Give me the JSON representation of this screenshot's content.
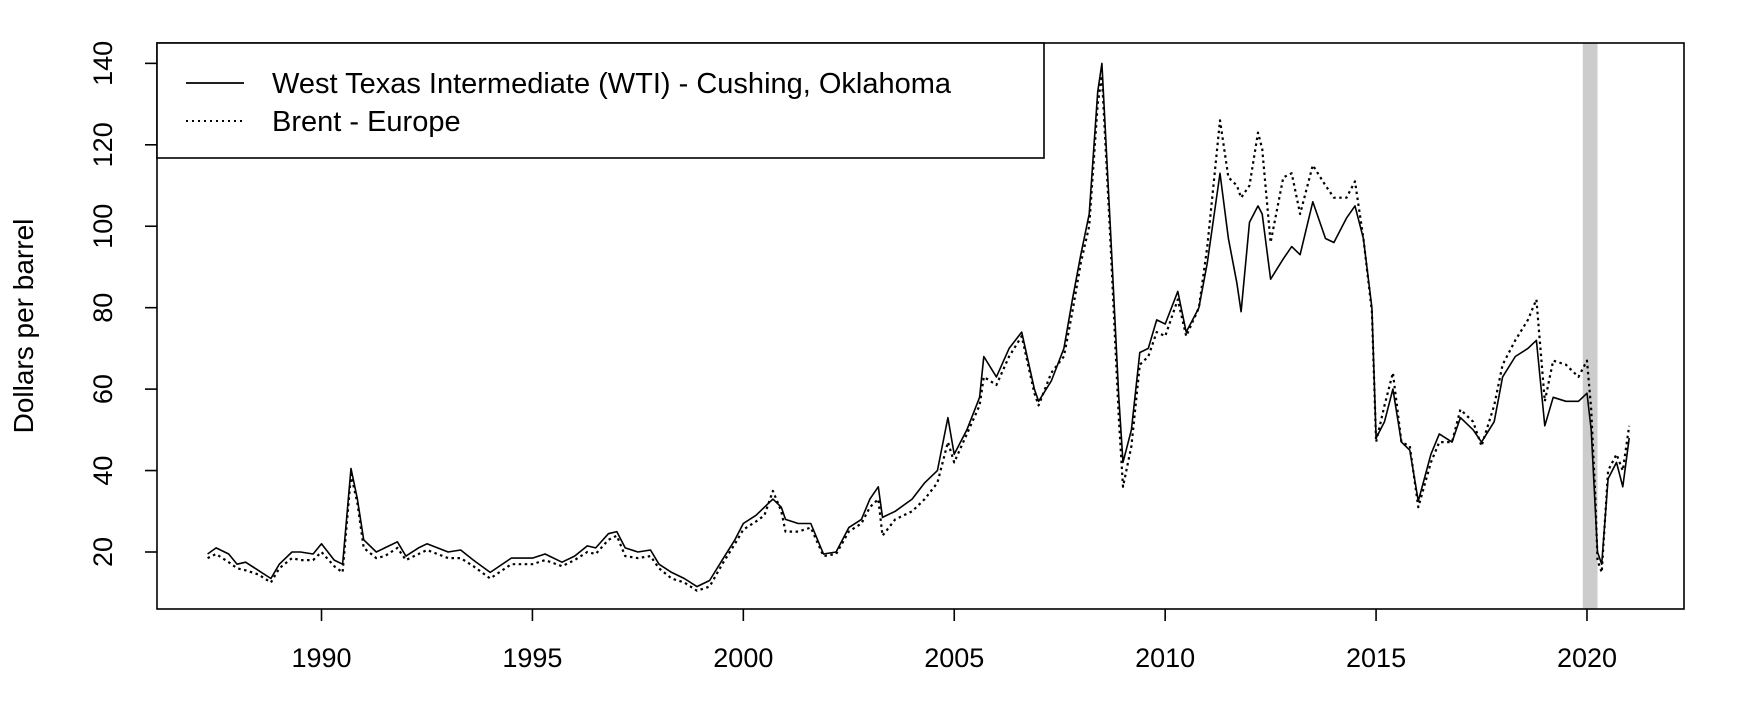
{
  "chart_data": {
    "type": "line",
    "title": "",
    "xlabel": "",
    "ylabel": "Dollars per barrel",
    "xlim": [
      1986.1,
      2022.3
    ],
    "ylim": [
      6,
      145
    ],
    "x_ticks": [
      1990,
      1995,
      2000,
      2005,
      2010,
      2015,
      2020
    ],
    "y_ticks": [
      20,
      40,
      60,
      80,
      100,
      120,
      140
    ],
    "grid": false,
    "legend": {
      "position": "top-left"
    },
    "shaded_region": {
      "x": [
        2019.9,
        2020.25
      ],
      "color": "#cccccc"
    },
    "series": [
      {
        "name": "West Texas Intermediate (WTI) - Cushing, Oklahoma",
        "style": "solid",
        "color": "#000000",
        "points": [
          [
            1987.3,
            19.5
          ],
          [
            1987.5,
            21
          ],
          [
            1987.8,
            19.5
          ],
          [
            1988.0,
            17
          ],
          [
            1988.2,
            17.5
          ],
          [
            1988.5,
            15.5
          ],
          [
            1988.8,
            13.5
          ],
          [
            1989.0,
            17
          ],
          [
            1989.3,
            20
          ],
          [
            1989.5,
            20
          ],
          [
            1989.8,
            19.5
          ],
          [
            1990.0,
            22
          ],
          [
            1990.3,
            18
          ],
          [
            1990.5,
            17
          ],
          [
            1990.7,
            40.5
          ],
          [
            1990.85,
            33
          ],
          [
            1991.0,
            23
          ],
          [
            1991.3,
            20
          ],
          [
            1991.5,
            21
          ],
          [
            1991.8,
            22.5
          ],
          [
            1992.0,
            19
          ],
          [
            1992.3,
            21
          ],
          [
            1992.5,
            22
          ],
          [
            1993.0,
            20
          ],
          [
            1993.3,
            20.5
          ],
          [
            1993.6,
            18
          ],
          [
            1994.0,
            15
          ],
          [
            1994.5,
            18.5
          ],
          [
            1995.0,
            18.5
          ],
          [
            1995.3,
            19.5
          ],
          [
            1995.7,
            17.5
          ],
          [
            1996.0,
            19
          ],
          [
            1996.3,
            21.5
          ],
          [
            1996.5,
            21
          ],
          [
            1996.8,
            24.5
          ],
          [
            1997.0,
            25
          ],
          [
            1997.2,
            21
          ],
          [
            1997.5,
            20
          ],
          [
            1997.8,
            20.5
          ],
          [
            1998.0,
            17
          ],
          [
            1998.3,
            15
          ],
          [
            1998.6,
            13.5
          ],
          [
            1998.9,
            11.5
          ],
          [
            1999.2,
            13
          ],
          [
            1999.5,
            18
          ],
          [
            1999.8,
            23
          ],
          [
            2000.0,
            27
          ],
          [
            2000.3,
            29
          ],
          [
            2000.5,
            31
          ],
          [
            2000.7,
            33
          ],
          [
            2000.9,
            31
          ],
          [
            2001.0,
            28
          ],
          [
            2001.3,
            27
          ],
          [
            2001.6,
            27
          ],
          [
            2001.9,
            19.5
          ],
          [
            2002.2,
            20
          ],
          [
            2002.5,
            26
          ],
          [
            2002.8,
            28
          ],
          [
            2003.0,
            33
          ],
          [
            2003.2,
            36
          ],
          [
            2003.3,
            28.5
          ],
          [
            2003.6,
            30
          ],
          [
            2004.0,
            33
          ],
          [
            2004.3,
            37
          ],
          [
            2004.6,
            40
          ],
          [
            2004.85,
            53
          ],
          [
            2005.0,
            44
          ],
          [
            2005.3,
            50
          ],
          [
            2005.6,
            58
          ],
          [
            2005.7,
            68
          ],
          [
            2006.0,
            63
          ],
          [
            2006.3,
            70
          ],
          [
            2006.6,
            74
          ],
          [
            2006.9,
            60
          ],
          [
            2007.0,
            57
          ],
          [
            2007.3,
            62
          ],
          [
            2007.6,
            70
          ],
          [
            2007.8,
            82
          ],
          [
            2008.0,
            93
          ],
          [
            2008.2,
            103
          ],
          [
            2008.4,
            133
          ],
          [
            2008.5,
            140
          ],
          [
            2008.7,
            100
          ],
          [
            2008.9,
            58
          ],
          [
            2009.0,
            42
          ],
          [
            2009.2,
            50
          ],
          [
            2009.4,
            69
          ],
          [
            2009.6,
            70
          ],
          [
            2009.8,
            77
          ],
          [
            2010.0,
            76
          ],
          [
            2010.3,
            84
          ],
          [
            2010.5,
            74
          ],
          [
            2010.8,
            80
          ],
          [
            2011.0,
            91
          ],
          [
            2011.3,
            113
          ],
          [
            2011.5,
            97
          ],
          [
            2011.7,
            86
          ],
          [
            2011.8,
            79
          ],
          [
            2012.0,
            101
          ],
          [
            2012.2,
            105
          ],
          [
            2012.3,
            103
          ],
          [
            2012.5,
            87
          ],
          [
            2012.8,
            92
          ],
          [
            2013.0,
            95
          ],
          [
            2013.2,
            93
          ],
          [
            2013.5,
            106
          ],
          [
            2013.8,
            97
          ],
          [
            2014.0,
            96
          ],
          [
            2014.3,
            102
          ],
          [
            2014.5,
            105
          ],
          [
            2014.7,
            97
          ],
          [
            2014.9,
            80
          ],
          [
            2015.0,
            48
          ],
          [
            2015.2,
            52
          ],
          [
            2015.4,
            60
          ],
          [
            2015.6,
            47
          ],
          [
            2015.8,
            45
          ],
          [
            2016.0,
            32.5
          ],
          [
            2016.3,
            44
          ],
          [
            2016.5,
            49
          ],
          [
            2016.8,
            47
          ],
          [
            2017.0,
            53
          ],
          [
            2017.3,
            50
          ],
          [
            2017.5,
            47
          ],
          [
            2017.8,
            52
          ],
          [
            2018.0,
            63
          ],
          [
            2018.3,
            68
          ],
          [
            2018.6,
            70
          ],
          [
            2018.8,
            72
          ],
          [
            2019.0,
            51
          ],
          [
            2019.2,
            58
          ],
          [
            2019.5,
            57
          ],
          [
            2019.8,
            57
          ],
          [
            2020.0,
            59
          ],
          [
            2020.1,
            50
          ],
          [
            2020.2,
            30
          ],
          [
            2020.25,
            20
          ],
          [
            2020.35,
            17
          ],
          [
            2020.5,
            38
          ],
          [
            2020.7,
            42
          ],
          [
            2020.85,
            36
          ],
          [
            2021.0,
            48
          ]
        ]
      },
      {
        "name": "Brent - Europe",
        "style": "dotted",
        "color": "#000000",
        "points": [
          [
            1987.3,
            18.5
          ],
          [
            1987.5,
            19.5
          ],
          [
            1987.8,
            17.5
          ],
          [
            1988.0,
            16
          ],
          [
            1988.2,
            15.5
          ],
          [
            1988.5,
            14.5
          ],
          [
            1988.8,
            12.5
          ],
          [
            1989.0,
            16
          ],
          [
            1989.3,
            18.5
          ],
          [
            1989.5,
            18
          ],
          [
            1989.8,
            18
          ],
          [
            1990.0,
            20
          ],
          [
            1990.3,
            16.5
          ],
          [
            1990.5,
            15
          ],
          [
            1990.7,
            39
          ],
          [
            1990.85,
            32
          ],
          [
            1991.0,
            21
          ],
          [
            1991.3,
            18.5
          ],
          [
            1991.5,
            19
          ],
          [
            1991.8,
            21
          ],
          [
            1992.0,
            18
          ],
          [
            1992.3,
            19.5
          ],
          [
            1992.5,
            20.5
          ],
          [
            1993.0,
            18.5
          ],
          [
            1993.3,
            18.5
          ],
          [
            1993.6,
            16.5
          ],
          [
            1994.0,
            13.5
          ],
          [
            1994.5,
            17
          ],
          [
            1995.0,
            17
          ],
          [
            1995.3,
            18
          ],
          [
            1995.7,
            16.5
          ],
          [
            1996.0,
            18
          ],
          [
            1996.3,
            20
          ],
          [
            1996.5,
            19.5
          ],
          [
            1996.8,
            23
          ],
          [
            1997.0,
            24
          ],
          [
            1997.2,
            19
          ],
          [
            1997.5,
            18.5
          ],
          [
            1997.8,
            19
          ],
          [
            1998.0,
            16
          ],
          [
            1998.3,
            13.5
          ],
          [
            1998.6,
            12.5
          ],
          [
            1998.9,
            10.5
          ],
          [
            1999.2,
            11.5
          ],
          [
            1999.5,
            17
          ],
          [
            1999.8,
            22
          ],
          [
            2000.0,
            25.5
          ],
          [
            2000.3,
            27.5
          ],
          [
            2000.5,
            29
          ],
          [
            2000.7,
            35
          ],
          [
            2000.9,
            30
          ],
          [
            2001.0,
            25
          ],
          [
            2001.3,
            25
          ],
          [
            2001.6,
            26
          ],
          [
            2001.9,
            19
          ],
          [
            2002.2,
            19.5
          ],
          [
            2002.5,
            25
          ],
          [
            2002.8,
            27
          ],
          [
            2003.0,
            31
          ],
          [
            2003.2,
            33
          ],
          [
            2003.3,
            24
          ],
          [
            2003.6,
            28
          ],
          [
            2004.0,
            30
          ],
          [
            2004.3,
            33
          ],
          [
            2004.6,
            37
          ],
          [
            2004.85,
            47
          ],
          [
            2005.0,
            42
          ],
          [
            2005.3,
            49
          ],
          [
            2005.6,
            56
          ],
          [
            2005.7,
            63
          ],
          [
            2006.0,
            61
          ],
          [
            2006.3,
            68
          ],
          [
            2006.6,
            73
          ],
          [
            2006.9,
            59
          ],
          [
            2007.0,
            56
          ],
          [
            2007.3,
            64
          ],
          [
            2007.6,
            68
          ],
          [
            2007.8,
            79
          ],
          [
            2008.0,
            91
          ],
          [
            2008.2,
            100
          ],
          [
            2008.4,
            130
          ],
          [
            2008.5,
            137
          ],
          [
            2008.7,
            97
          ],
          [
            2008.9,
            53
          ],
          [
            2009.0,
            36
          ],
          [
            2009.2,
            46
          ],
          [
            2009.4,
            66
          ],
          [
            2009.6,
            68
          ],
          [
            2009.8,
            74
          ],
          [
            2010.0,
            73
          ],
          [
            2010.3,
            82
          ],
          [
            2010.5,
            73
          ],
          [
            2010.8,
            80
          ],
          [
            2011.0,
            95
          ],
          [
            2011.3,
            126
          ],
          [
            2011.5,
            112
          ],
          [
            2011.7,
            110
          ],
          [
            2011.8,
            107
          ],
          [
            2012.0,
            110
          ],
          [
            2012.2,
            123
          ],
          [
            2012.3,
            119
          ],
          [
            2012.5,
            96
          ],
          [
            2012.8,
            112
          ],
          [
            2013.0,
            113
          ],
          [
            2013.2,
            103
          ],
          [
            2013.5,
            115
          ],
          [
            2013.8,
            110
          ],
          [
            2014.0,
            107
          ],
          [
            2014.3,
            107
          ],
          [
            2014.5,
            111
          ],
          [
            2014.7,
            97
          ],
          [
            2014.9,
            79
          ],
          [
            2015.0,
            47
          ],
          [
            2015.2,
            56
          ],
          [
            2015.4,
            64
          ],
          [
            2015.6,
            47
          ],
          [
            2015.8,
            46
          ],
          [
            2016.0,
            31
          ],
          [
            2016.3,
            42
          ],
          [
            2016.5,
            47
          ],
          [
            2016.8,
            47
          ],
          [
            2017.0,
            55
          ],
          [
            2017.3,
            52
          ],
          [
            2017.5,
            46
          ],
          [
            2017.8,
            56
          ],
          [
            2018.0,
            66
          ],
          [
            2018.3,
            72
          ],
          [
            2018.6,
            77
          ],
          [
            2018.8,
            82
          ],
          [
            2019.0,
            57
          ],
          [
            2019.2,
            67
          ],
          [
            2019.5,
            66
          ],
          [
            2019.8,
            63
          ],
          [
            2020.0,
            67
          ],
          [
            2020.1,
            55
          ],
          [
            2020.2,
            33
          ],
          [
            2020.25,
            18
          ],
          [
            2020.35,
            15
          ],
          [
            2020.5,
            40
          ],
          [
            2020.7,
            44
          ],
          [
            2020.85,
            40
          ],
          [
            2021.0,
            51
          ]
        ]
      }
    ]
  }
}
